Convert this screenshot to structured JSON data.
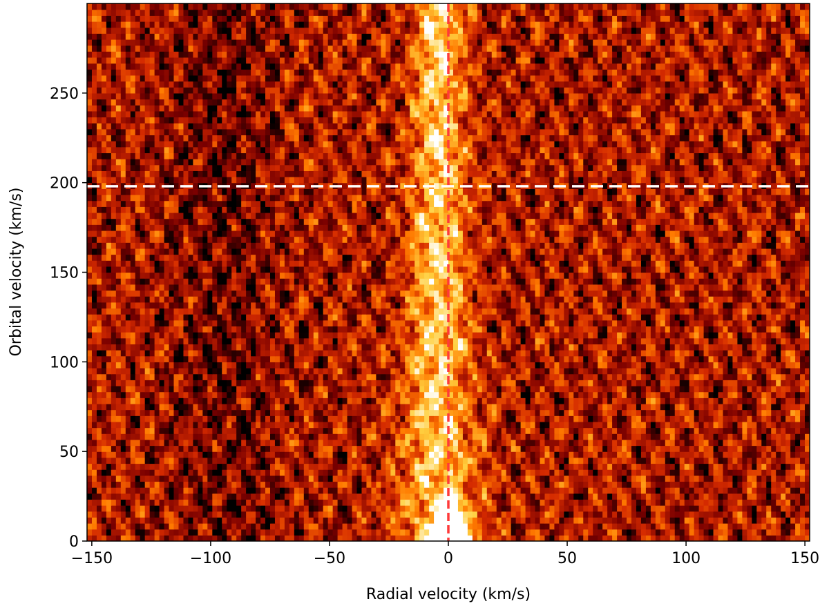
{
  "chart_data": {
    "type": "heatmap",
    "title": "",
    "xlabel": "Radial velocity (km/s)",
    "ylabel": "Orbital velocity (km/s)",
    "xlim": [
      -152,
      152
    ],
    "ylim": [
      0,
      300
    ],
    "xticks": [
      -150,
      -100,
      -50,
      0,
      50,
      100,
      150
    ],
    "xtick_labels": [
      "−150",
      "−100",
      "−50",
      "0",
      "50",
      "100",
      "150"
    ],
    "yticks": [
      0,
      50,
      100,
      150,
      200,
      250
    ],
    "ytick_labels": [
      "0",
      "50",
      "100",
      "150",
      "200",
      "250"
    ],
    "colormap": "hot (black → red → orange → yellow → white)",
    "colors": [
      "#000000",
      "#7a0000",
      "#d42a00",
      "#ff7a00",
      "#ffd040",
      "#ffffff"
    ],
    "grid": false,
    "legend": "none",
    "peak_signal": {
      "radial_velocity": 0,
      "orbital_velocity_range": [
        0,
        300
      ]
    },
    "reference_lines": [
      {
        "orientation": "vertical",
        "value": 0,
        "style": "dashed",
        "color": "#ff3a3a"
      },
      {
        "orientation": "horizontal",
        "value": 198,
        "style": "dashed",
        "color": "#ffffff"
      }
    ]
  }
}
